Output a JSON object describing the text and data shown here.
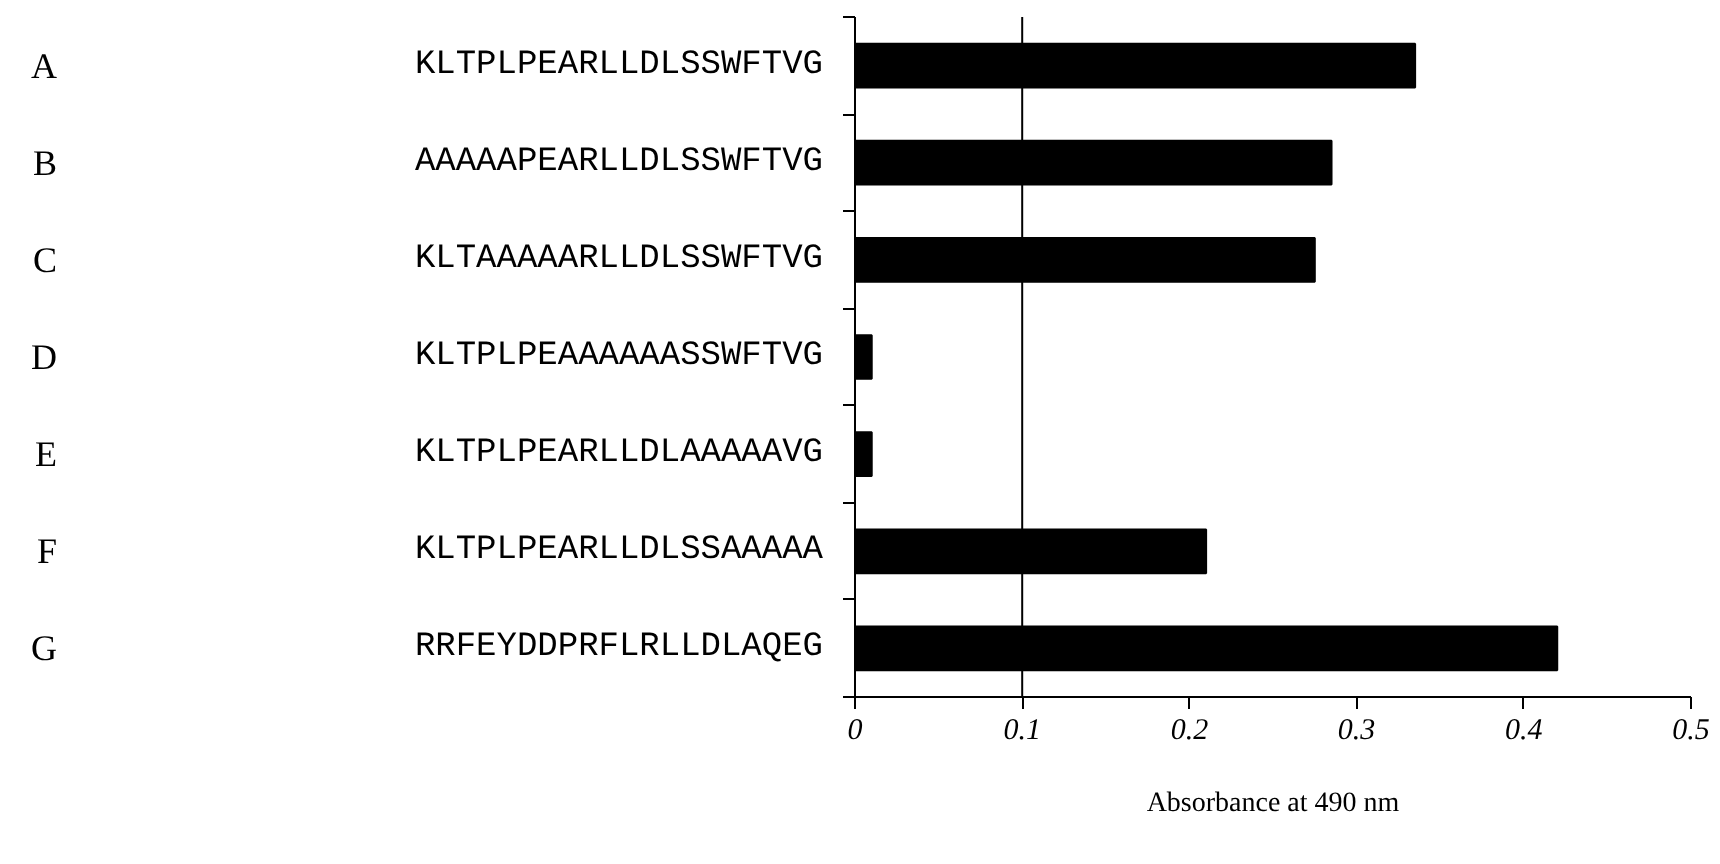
{
  "chart_data": {
    "type": "bar",
    "orientation": "horizontal",
    "xlabel": "Absorbance at 490 nm",
    "categories": [
      "KLTPLPEARLLDLSSWFTVG",
      "AAAAAPEARLLDLSSWFTVG",
      "KLTAAAAARLLDLSSWFTVG",
      "KLTPLPEAAAAAASSWFTVG",
      "KLTPLPEARLLDLAAAAAVG",
      "KLTPLPEARLLDLSSAAAAA",
      "RRFEYDDPRFLRLLDLAQEG"
    ],
    "values": [
      0.335,
      0.285,
      0.275,
      0.01,
      0.01,
      0.21,
      0.42
    ],
    "color": "#000000",
    "xlim": [
      0,
      0.5
    ],
    "xticks": [
      0,
      0.1,
      0.2,
      0.3,
      0.4,
      0.5
    ],
    "ref_lines": [
      {
        "axis": "x",
        "value": 0.1,
        "color": "#000000"
      }
    ],
    "annotations": [
      "A",
      "B",
      "C",
      "D",
      "E",
      "F",
      "G"
    ],
    "grid": false
  }
}
